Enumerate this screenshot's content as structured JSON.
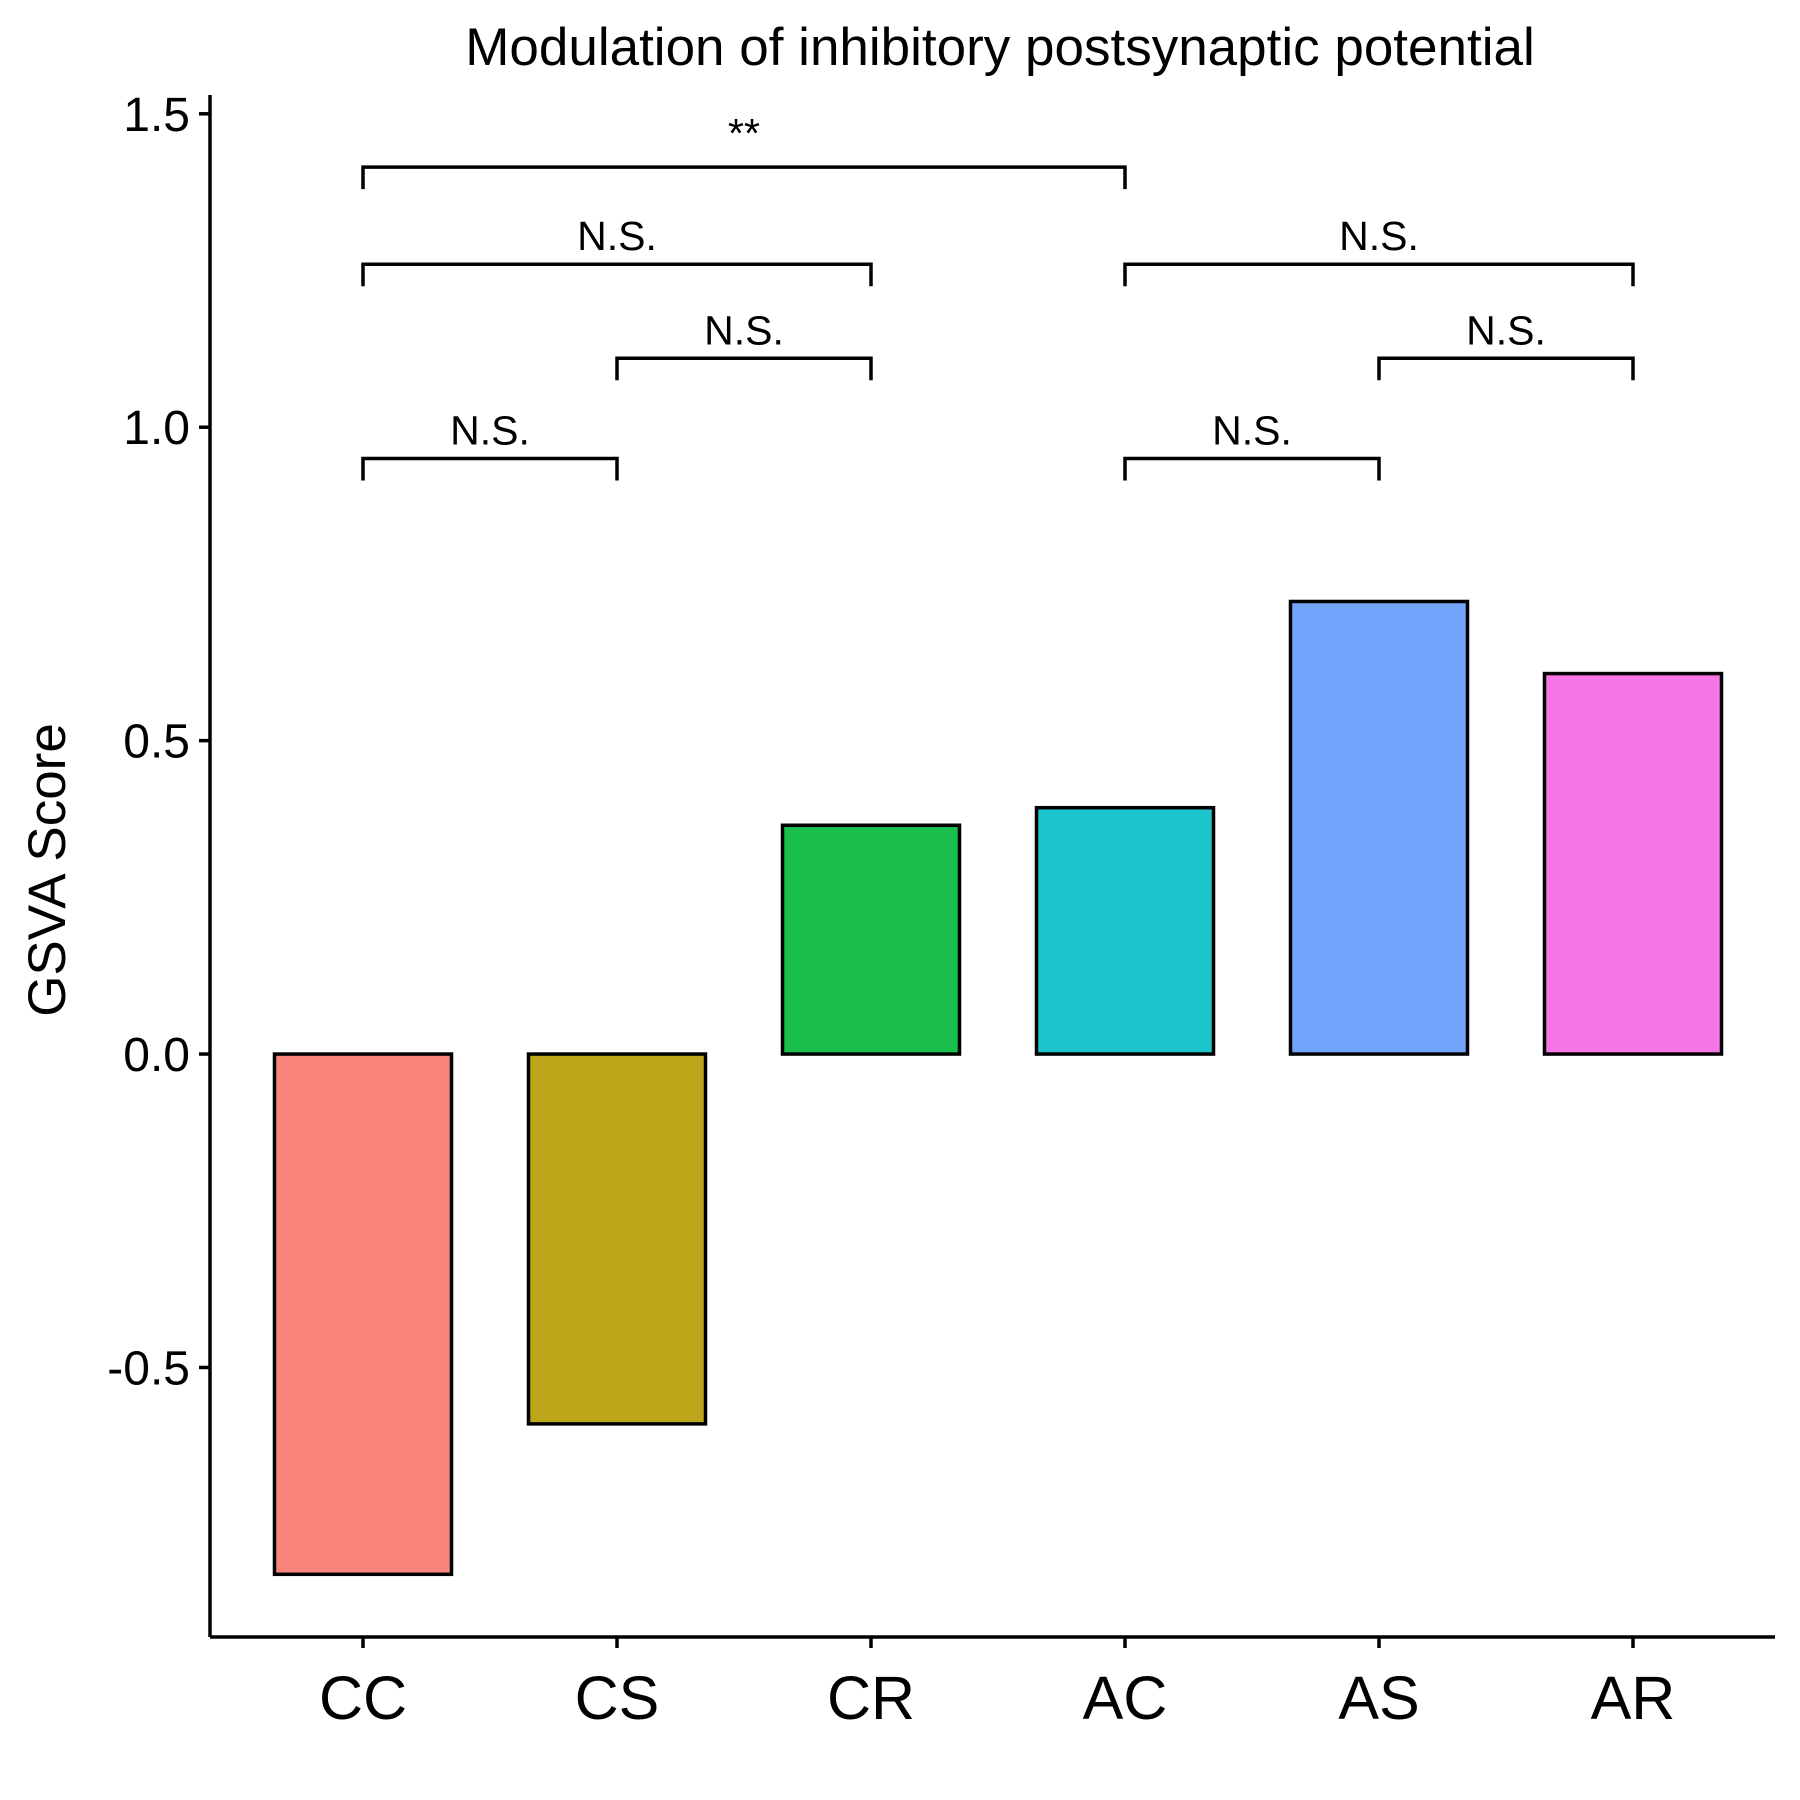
{
  "chart_data": {
    "type": "bar",
    "title": "Modulation of inhibitory postsynaptic potential",
    "xlabel": "",
    "ylabel": "GSVA Score",
    "categories": [
      "CC",
      "CS",
      "CR",
      "AC",
      "AS",
      "AR"
    ],
    "values": [
      -0.83,
      -0.59,
      0.365,
      0.393,
      0.722,
      0.607
    ],
    "colors": [
      "#F8837B",
      "#BDA619",
      "#19BE4B",
      "#1CC4CB",
      "#70A5FB",
      "#F675E4"
    ],
    "ylim": [
      -0.93,
      1.53
    ],
    "yticks": [
      -0.5,
      0.0,
      0.5,
      1.0,
      1.5
    ],
    "ytick_labels": [
      "-0.5",
      "0.0",
      "0.5",
      "1.0",
      "1.5"
    ],
    "grid": false,
    "legend": "none",
    "comparisons": [
      {
        "from": "CC",
        "to": "CS",
        "y": 0.95,
        "label": "N.S."
      },
      {
        "from": "CS",
        "to": "CR",
        "y": 1.11,
        "label": "N.S."
      },
      {
        "from": "CC",
        "to": "CR",
        "y": 1.26,
        "label": "N.S."
      },
      {
        "from": "CC",
        "to": "AC",
        "y": 1.415,
        "label": "**"
      },
      {
        "from": "AC",
        "to": "AS",
        "y": 0.95,
        "label": "N.S."
      },
      {
        "from": "AS",
        "to": "AR",
        "y": 1.11,
        "label": "N.S."
      },
      {
        "from": "AC",
        "to": "AR",
        "y": 1.26,
        "label": "N.S."
      }
    ]
  }
}
